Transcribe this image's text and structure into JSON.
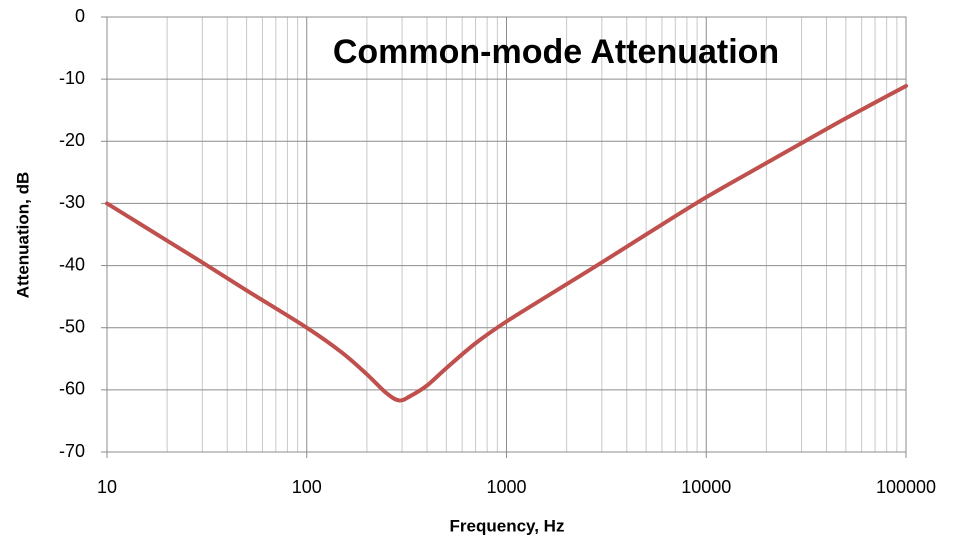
{
  "chart_data": {
    "type": "line",
    "title": "Common-mode Attenuation",
    "x_label": "Frequency, Hz",
    "y_label": "Attenuation, dB",
    "x": [
      10,
      20,
      30,
      50,
      100,
      150,
      200,
      250,
      290,
      330,
      400,
      500,
      700,
      1000,
      2000,
      3000,
      5000,
      10000,
      20000,
      30000,
      50000,
      100000
    ],
    "values": [
      -30,
      -36,
      -39.5,
      -44,
      -50,
      -54,
      -57.5,
      -60.5,
      -61.7,
      -61,
      -59.3,
      -56.5,
      -52.5,
      -49,
      -43,
      -39.5,
      -35,
      -29,
      -23.5,
      -20.3,
      -16.3,
      -11.1
    ],
    "color": "#c0504d",
    "xscale": "log",
    "xlim": [
      10,
      100000
    ],
    "xticks": [
      10,
      100,
      1000,
      10000,
      100000
    ],
    "ylim": [
      -70,
      0
    ],
    "yticks": [
      0,
      -10,
      -20,
      -30,
      -40,
      -50,
      -60,
      -70
    ],
    "grid": true
  }
}
